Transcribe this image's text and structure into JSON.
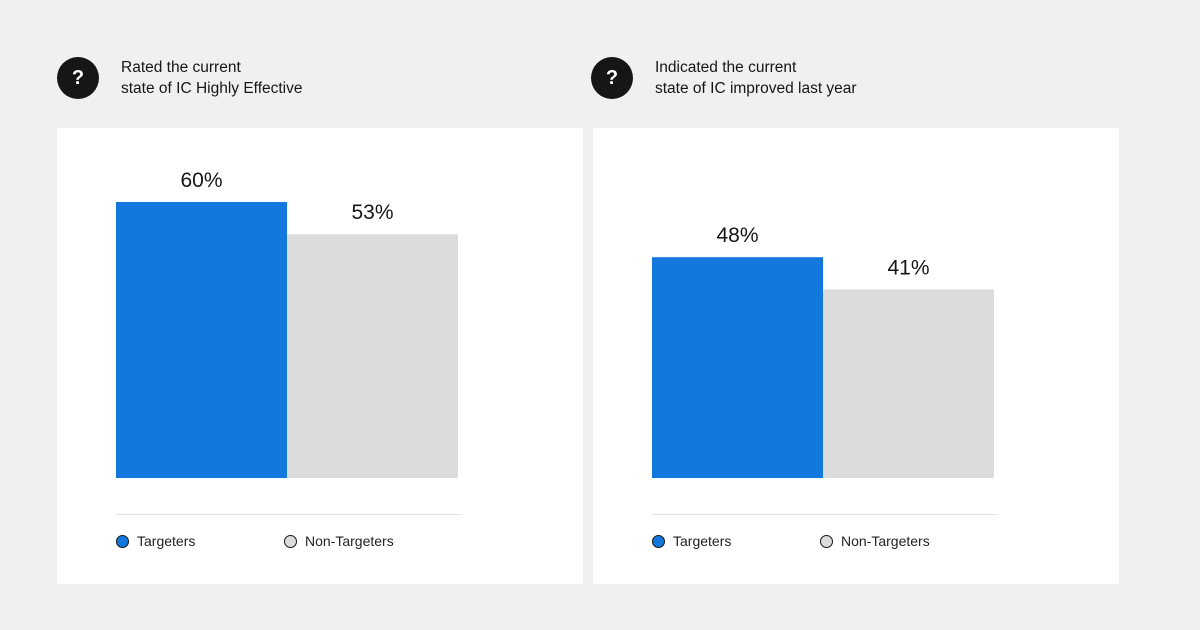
{
  "colors": {
    "targeters": "#1378dd",
    "non_targeters": "#dcdcdc"
  },
  "panels": [
    {
      "icon": "question-icon",
      "icon_glyph": "?",
      "title_lines": [
        "Rated the current",
        "state of IC Highly Effective"
      ],
      "legend": [
        "Targeters",
        "Non-Targeters"
      ]
    },
    {
      "icon": "question-icon",
      "icon_glyph": "?",
      "title_lines": [
        "Indicated the current",
        "state of IC improved last year"
      ],
      "legend": [
        "Targeters",
        "Non-Targeters"
      ]
    }
  ],
  "chart_data": [
    {
      "type": "bar",
      "title": "Rated the current state of IC Highly Effective",
      "categories": [
        "Targeters",
        "Non-Targeters"
      ],
      "values": [
        60,
        53
      ],
      "labels": [
        "60%",
        "53%"
      ],
      "unit": "%",
      "ylim": [
        0,
        100
      ],
      "grid": false,
      "legend_position": "bottom"
    },
    {
      "type": "bar",
      "title": "Indicated the current state of IC improved last year",
      "categories": [
        "Targeters",
        "Non-Targeters"
      ],
      "values": [
        48,
        41
      ],
      "labels": [
        "48%",
        "41%"
      ],
      "unit": "%",
      "ylim": [
        0,
        100
      ],
      "grid": false,
      "legend_position": "bottom"
    }
  ]
}
